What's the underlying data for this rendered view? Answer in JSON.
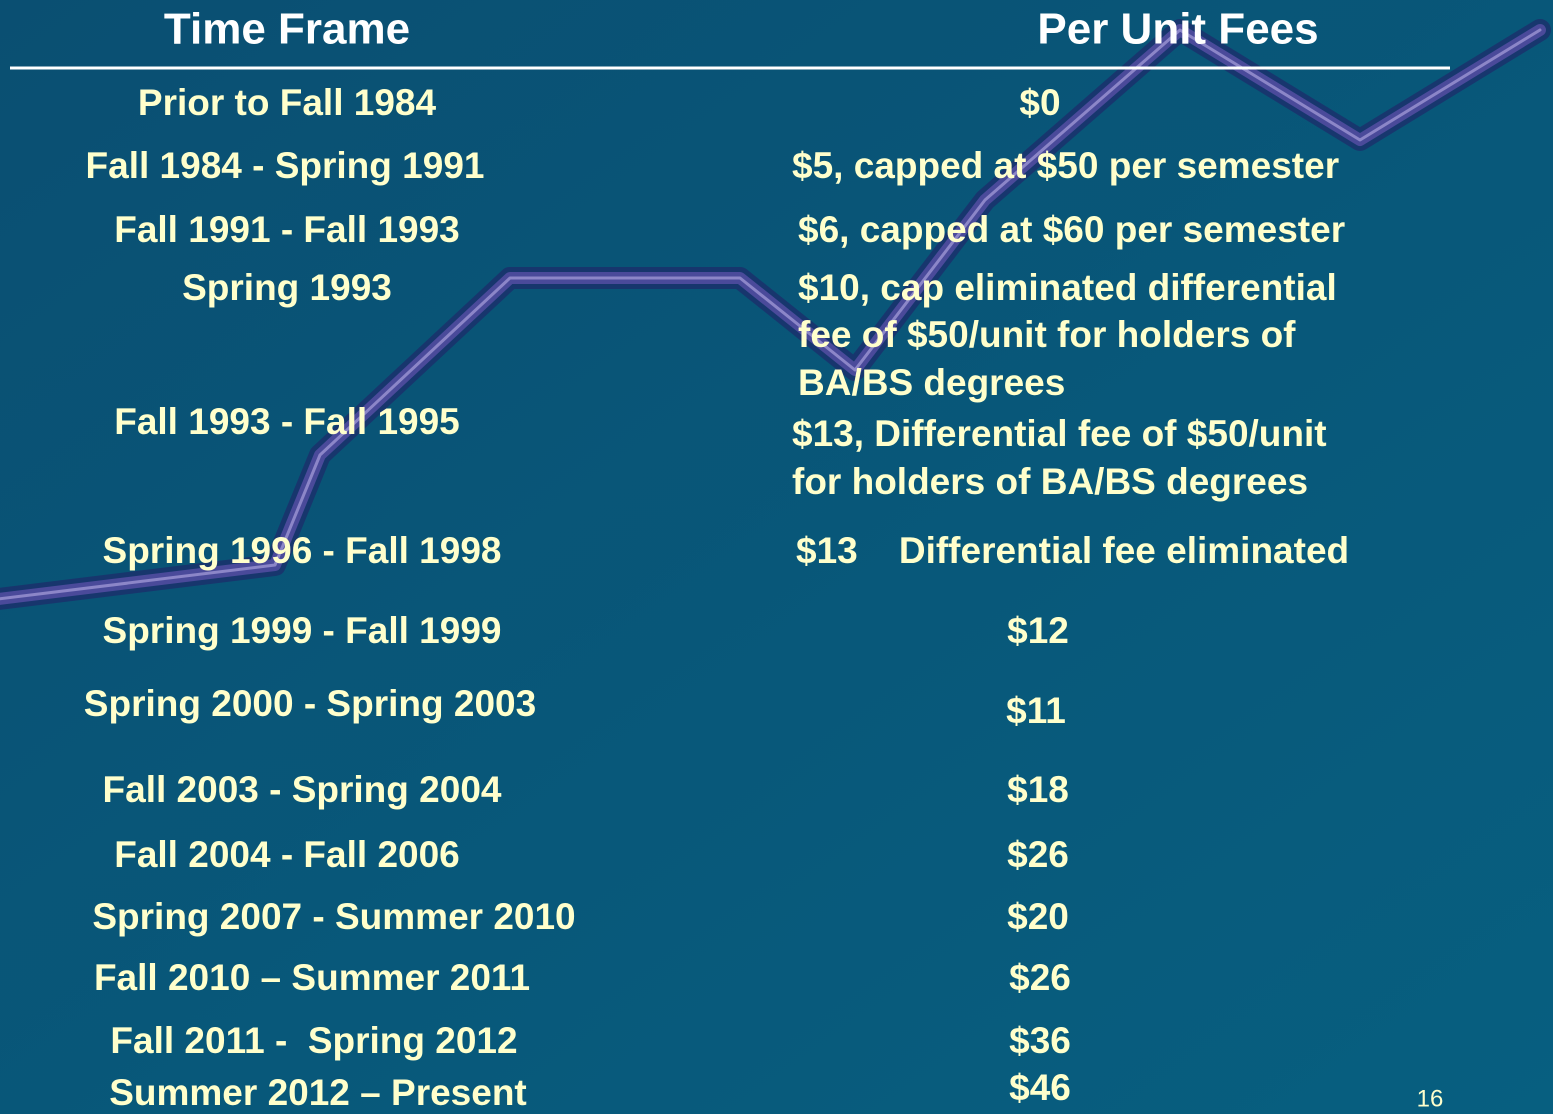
{
  "header": {
    "columns": [
      "Time Frame",
      "Per Unit Fees"
    ]
  },
  "table": {
    "rows": [
      [
        "Prior to Fall 1984",
        [
          "$0"
        ]
      ],
      [
        "Fall 1984 - Spring 1991",
        [
          "$5, capped at $50 per semester"
        ]
      ],
      [
        "Fall 1991 - Fall 1993",
        [
          "$6, capped at $60 per semester"
        ]
      ],
      [
        "Spring 1993",
        [
          "$10, cap eliminated differential",
          "fee of $50/unit for holders of",
          "BA/BS degrees"
        ]
      ],
      [
        "Fall 1993 - Fall 1995",
        [
          "$13, Differential fee of $50/unit",
          "for holders of BA/BS degrees"
        ]
      ],
      [
        "Spring 1996 - Fall 1998",
        [
          "$13    Differential fee eliminated"
        ]
      ],
      [
        "Spring 1999 - Fall 1999",
        [
          "$12"
        ]
      ],
      [
        "Spring 2000 - Spring 2003",
        [
          "$11"
        ]
      ],
      [
        "Fall 2003 - Spring 2004",
        [
          "$18"
        ]
      ],
      [
        "Fall 2004 - Fall 2006",
        [
          "$26"
        ]
      ],
      [
        "Spring 2007 - Summer 2010",
        [
          "$20"
        ]
      ],
      [
        "Fall 2010 – Summer 2011",
        [
          "$26"
        ]
      ],
      [
        "Fall 2011 -  Spring 2012",
        [
          "$36"
        ]
      ],
      [
        "Summer 2012 – Present",
        [
          "$46"
        ]
      ]
    ]
  },
  "footer": {
    "page_number": "16"
  }
}
